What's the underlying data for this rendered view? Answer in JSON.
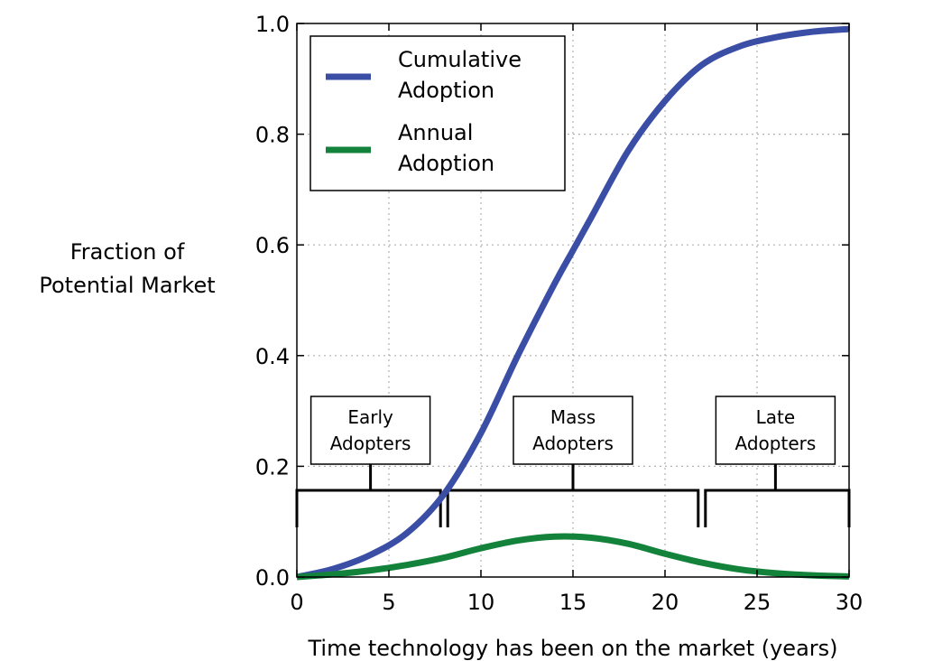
{
  "chart_data": {
    "type": "line",
    "title": "",
    "xlabel": "Time technology has been on the market (years)",
    "ylabel_lines": [
      "Fraction of",
      "Potential Market"
    ],
    "xlim": [
      0,
      30
    ],
    "ylim": [
      0,
      1.0
    ],
    "x_ticks": [
      0,
      5,
      10,
      15,
      20,
      25,
      30
    ],
    "x_tick_labels": [
      "0",
      "5",
      "10",
      "15",
      "20",
      "25",
      "30"
    ],
    "y_ticks": [
      0.0,
      0.2,
      0.4,
      0.6,
      0.8,
      1.0
    ],
    "y_tick_labels": [
      "0.0",
      "0.2",
      "0.4",
      "0.6",
      "0.8",
      "1.0"
    ],
    "grid": true,
    "legend_position": "top-left",
    "series": [
      {
        "name": "Cumulative Adoption",
        "legend_lines": [
          "Cumulative",
          "Adoption"
        ],
        "color": "#3a4ea6",
        "x": [
          0,
          2,
          4,
          6,
          8,
          10,
          12,
          14,
          15,
          16,
          18,
          20,
          22,
          24,
          26,
          28,
          30
        ],
        "y": [
          0.0,
          0.015,
          0.04,
          0.08,
          0.15,
          0.26,
          0.4,
          0.53,
          0.59,
          0.65,
          0.77,
          0.86,
          0.925,
          0.958,
          0.975,
          0.985,
          0.99
        ]
      },
      {
        "name": "Annual Adoption",
        "legend_lines": [
          "Annual",
          "Adoption"
        ],
        "color": "#13823b",
        "x": [
          0,
          2,
          4,
          6,
          8,
          10,
          12,
          14,
          16,
          18,
          20,
          22,
          24,
          26,
          28,
          30
        ],
        "y": [
          0.0,
          0.005,
          0.012,
          0.022,
          0.035,
          0.052,
          0.066,
          0.073,
          0.071,
          0.06,
          0.042,
          0.026,
          0.014,
          0.007,
          0.003,
          0.001
        ]
      }
    ],
    "phases": [
      {
        "label_lines": [
          "Early",
          "Adopters"
        ],
        "start": 0,
        "end": 8,
        "label_x": 4
      },
      {
        "label_lines": [
          "Mass",
          "Adopters"
        ],
        "start": 8,
        "end": 22,
        "label_x": 15
      },
      {
        "label_lines": [
          "Late",
          "Adopters"
        ],
        "start": 22,
        "end": 30,
        "label_x": 26
      }
    ]
  }
}
